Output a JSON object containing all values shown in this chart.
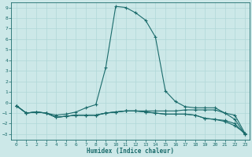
{
  "title": "",
  "xlabel": "Humidex (Indice chaleur)",
  "xlim": [
    -0.5,
    23.5
  ],
  "ylim": [
    -3.5,
    9.5
  ],
  "xticks": [
    0,
    1,
    2,
    3,
    4,
    5,
    6,
    7,
    8,
    9,
    10,
    11,
    12,
    13,
    14,
    15,
    16,
    17,
    18,
    19,
    20,
    21,
    22,
    23
  ],
  "yticks": [
    -3,
    -2,
    -1,
    0,
    1,
    2,
    3,
    4,
    5,
    6,
    7,
    8,
    9
  ],
  "bg_color": "#cce8e8",
  "grid_color": "#b0d8d8",
  "line_color": "#1a6b6b",
  "line1_x": [
    0,
    1,
    2,
    3,
    4,
    5,
    6,
    7,
    8,
    9,
    10,
    11,
    12,
    13,
    14,
    15,
    16,
    17,
    18,
    19,
    20,
    21,
    22,
    23
  ],
  "line1_y": [
    -0.3,
    -1.0,
    -0.9,
    -1.0,
    -1.2,
    -1.1,
    -0.9,
    -0.5,
    -0.2,
    3.3,
    9.1,
    9.0,
    8.5,
    7.8,
    6.2,
    1.1,
    0.1,
    -0.4,
    -0.5,
    -0.5,
    -0.5,
    -1.0,
    -1.2,
    -2.9
  ],
  "line2_x": [
    0,
    1,
    2,
    3,
    4,
    5,
    6,
    7,
    8,
    9,
    10,
    11,
    12,
    13,
    14,
    15,
    16,
    17,
    18,
    19,
    20,
    21,
    22,
    23
  ],
  "line2_y": [
    -0.3,
    -1.0,
    -0.9,
    -1.0,
    -1.4,
    -1.3,
    -1.2,
    -1.2,
    -1.2,
    -1.0,
    -0.9,
    -0.8,
    -0.8,
    -0.9,
    -1.0,
    -1.1,
    -1.1,
    -1.1,
    -1.2,
    -1.5,
    -1.6,
    -1.8,
    -2.2,
    -2.9
  ],
  "line3_x": [
    0,
    1,
    2,
    3,
    4,
    5,
    6,
    7,
    8,
    9,
    10,
    11,
    12,
    13,
    14,
    15,
    16,
    17,
    18,
    19,
    20,
    21,
    22,
    23
  ],
  "line3_y": [
    -0.3,
    -1.0,
    -0.9,
    -1.0,
    -1.4,
    -1.3,
    -1.2,
    -1.2,
    -1.2,
    -1.0,
    -0.9,
    -0.8,
    -0.8,
    -0.9,
    -1.0,
    -1.1,
    -1.1,
    -1.1,
    -1.2,
    -1.5,
    -1.6,
    -1.7,
    -2.0,
    -3.0
  ],
  "line4_x": [
    0,
    1,
    2,
    3,
    4,
    5,
    6,
    7,
    8,
    9,
    10,
    11,
    12,
    13,
    14,
    15,
    16,
    17,
    18,
    19,
    20,
    21,
    22,
    23
  ],
  "line4_y": [
    -0.3,
    -1.0,
    -0.9,
    -1.0,
    -1.4,
    -1.3,
    -1.2,
    -1.2,
    -1.2,
    -1.0,
    -0.9,
    -0.8,
    -0.8,
    -0.8,
    -0.8,
    -0.8,
    -0.8,
    -0.7,
    -0.7,
    -0.7,
    -0.7,
    -1.0,
    -1.6,
    -3.0
  ]
}
